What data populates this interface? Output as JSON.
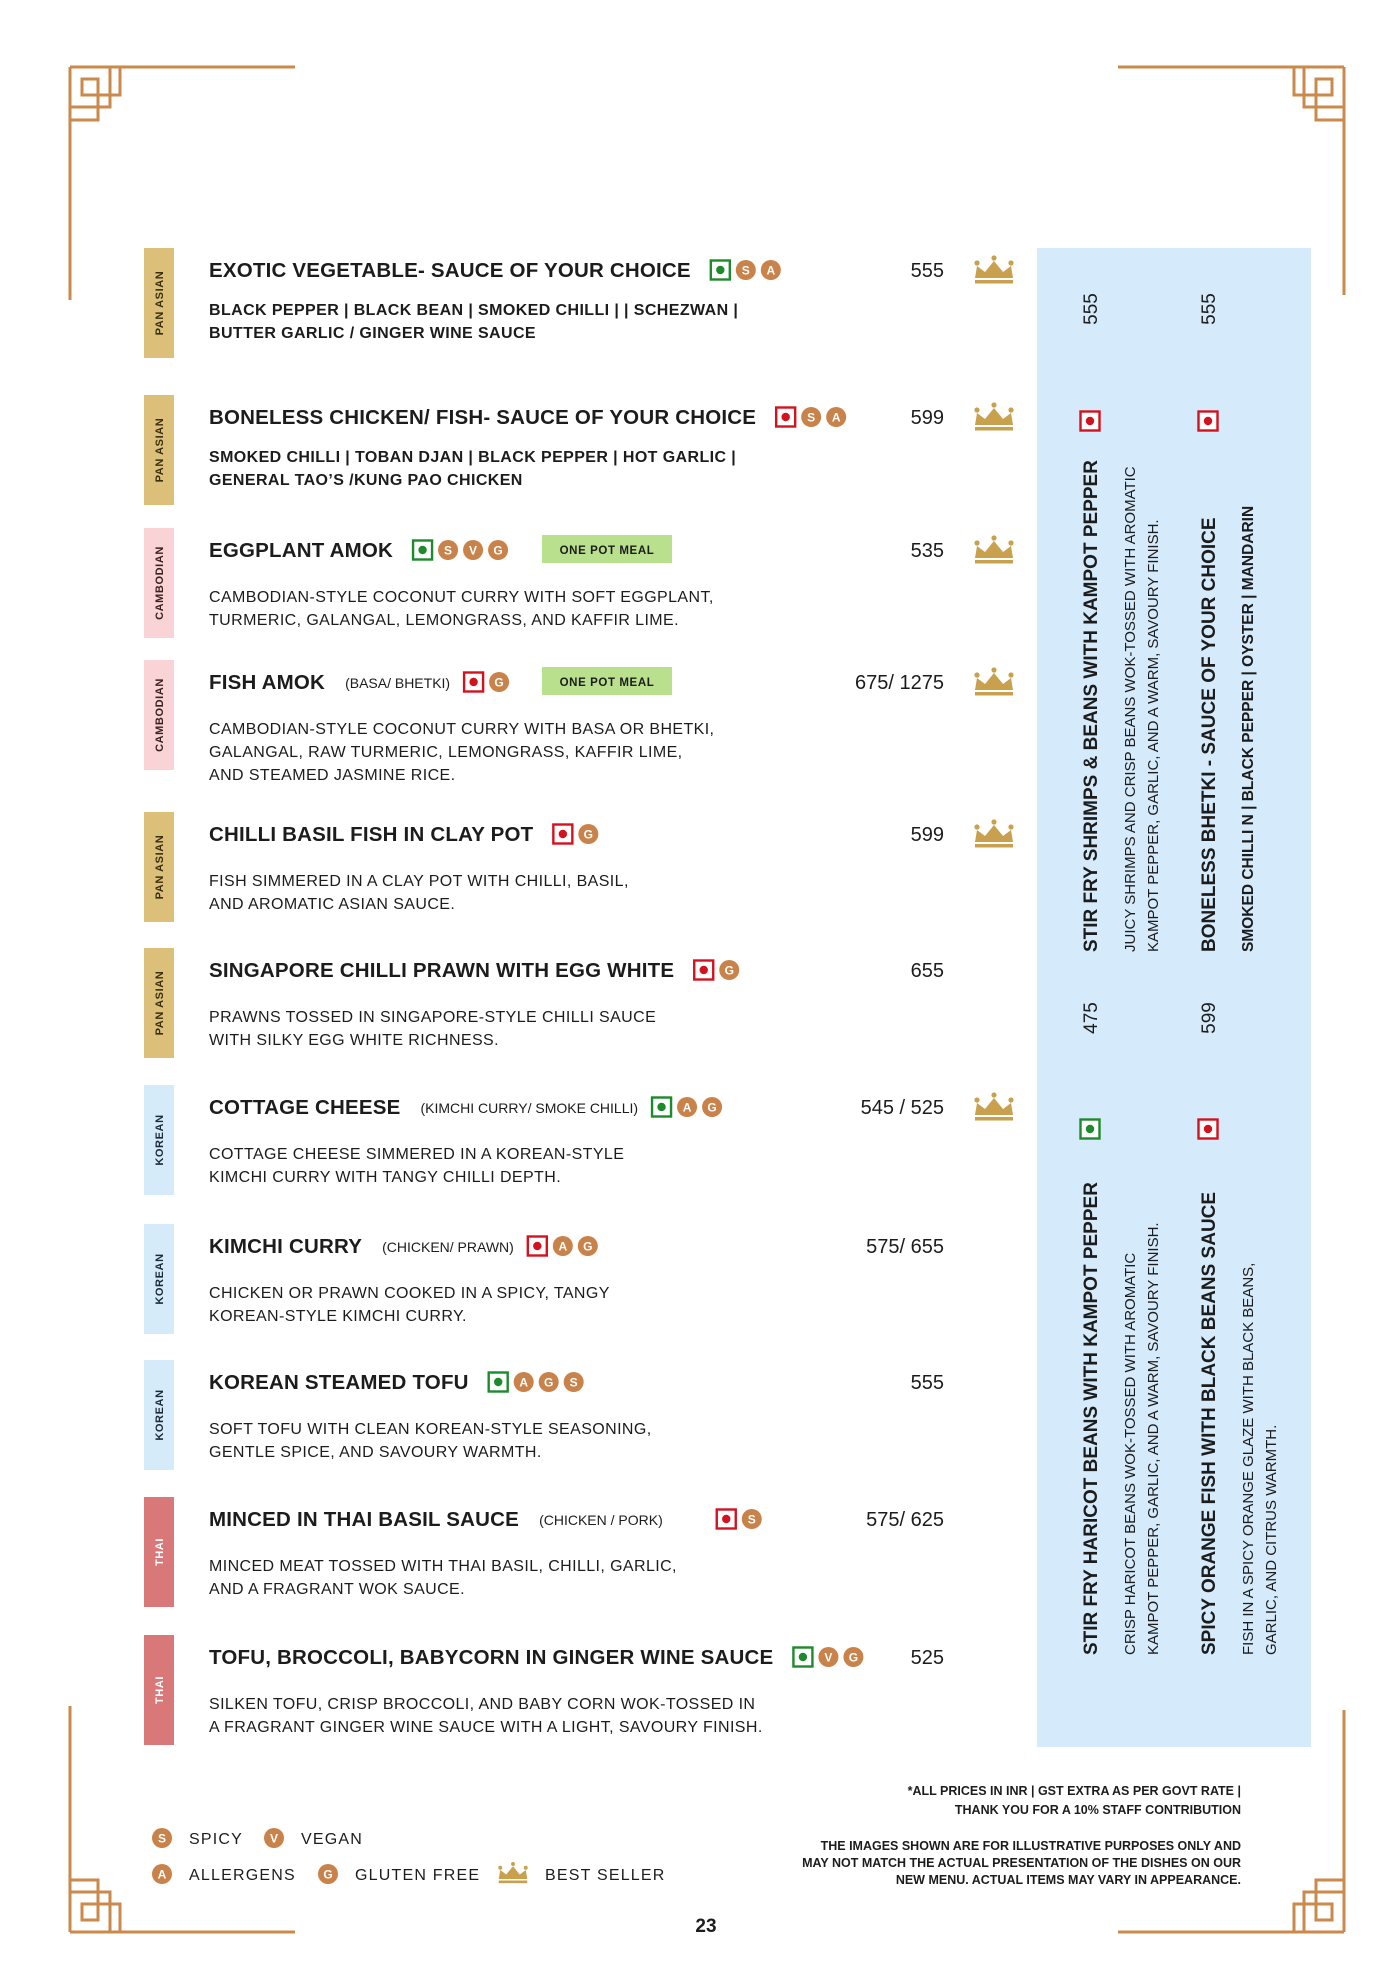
{
  "items": [
    {
      "tag": "PAN ASIAN",
      "tag_color": "#dcc07a",
      "tag_text_color": "#3a2e10",
      "name": "EXOTIC VEGETABLE- SAUCE OF YOUR CHOICE",
      "diet": "veg",
      "icons": [
        "S",
        "A"
      ],
      "price": "555",
      "bestseller": true,
      "desc_bold": true,
      "description": [
        "BLACK PEPPER | BLACK BEAN | SMOKED CHILLI |  | SCHEZWAN |",
        "BUTTER GARLIC / GINGER WINE SAUCE"
      ]
    },
    {
      "tag": "PAN ASIAN",
      "tag_color": "#dcc07a",
      "tag_text_color": "#3a2e10",
      "name": "BONELESS CHICKEN/ FISH- SAUCE OF YOUR CHOICE",
      "diet": "non-veg",
      "icons": [
        "S",
        "A"
      ],
      "price": "599",
      "bestseller": true,
      "desc_bold": true,
      "description": [
        "SMOKED CHILLI | TOBAN DJAN | BLACK PEPPER | HOT GARLIC |",
        "GENERAL TAO’S /KUNG PAO CHICKEN"
      ]
    },
    {
      "tag": "CAMBODIAN",
      "tag_color": "#f9d3d6",
      "tag_text_color": "#3a2020",
      "name": "EGGPLANT AMOK",
      "diet": "veg",
      "icons": [
        "S",
        "V",
        "G"
      ],
      "one_pot": "ONE POT MEAL",
      "price": "535",
      "bestseller": true,
      "desc_bold": false,
      "description": [
        "CAMBODIAN-STYLE COCONUT CURRY WITH SOFT EGGPLANT,",
        "TURMERIC, GALANGAL, LEMONGRASS, AND KAFFIR LIME."
      ]
    },
    {
      "tag": "CAMBODIAN",
      "tag_color": "#f9d3d6",
      "tag_text_color": "#3a2020",
      "name": "FISH AMOK",
      "variant": "(BASA/ BHETKI)",
      "diet": "non-veg",
      "icons": [
        "G"
      ],
      "one_pot": "ONE POT MEAL",
      "price": "675/ 1275",
      "bestseller": true,
      "desc_bold": false,
      "description": [
        "CAMBODIAN-STYLE COCONUT CURRY WITH BASA OR BHETKI,",
        "GALANGAL, RAW TURMERIC, LEMONGRASS, KAFFIR LIME,",
        "AND STEAMED JASMINE RICE."
      ]
    },
    {
      "tag": "PAN ASIAN",
      "tag_color": "#dcc07a",
      "tag_text_color": "#3a2e10",
      "name": "CHILLI BASIL FISH IN CLAY POT",
      "diet": "non-veg",
      "icons": [
        "G"
      ],
      "price": "599",
      "bestseller": true,
      "desc_bold": false,
      "description": [
        "FISH SIMMERED IN A CLAY POT WITH CHILLI, BASIL,",
        "AND AROMATIC ASIAN SAUCE."
      ]
    },
    {
      "tag": "PAN ASIAN",
      "tag_color": "#dcc07a",
      "tag_text_color": "#3a2e10",
      "name": "SINGAPORE CHILLI PRAWN WITH EGG WHITE",
      "diet": "non-veg",
      "icons": [
        "G"
      ],
      "price": "655",
      "bestseller": false,
      "desc_bold": false,
      "description": [
        "PRAWNS TOSSED IN SINGAPORE-STYLE CHILLI SAUCE",
        "WITH SILKY EGG WHITE RICHNESS."
      ]
    },
    {
      "tag": "KOREAN",
      "tag_color": "#d6ebf9",
      "tag_text_color": "#1c2a3a",
      "name": "COTTAGE CHEESE",
      "variant": "(KIMCHI CURRY/ SMOKE CHILLI)",
      "diet": "veg",
      "icons": [
        "A",
        "G"
      ],
      "price": "545 / 525",
      "bestseller": true,
      "desc_bold": false,
      "description": [
        "COTTAGE CHEESE SIMMERED IN A KOREAN-STYLE",
        "KIMCHI CURRY WITH TANGY CHILLI DEPTH."
      ]
    },
    {
      "tag": "KOREAN",
      "tag_color": "#d6ebf9",
      "tag_text_color": "#1c2a3a",
      "name": "KIMCHI CURRY",
      "variant": "(CHICKEN/ PRAWN)",
      "diet": "non-veg",
      "icons": [
        "A",
        "G"
      ],
      "price": "575/ 655",
      "bestseller": false,
      "desc_bold": false,
      "description": [
        "CHICKEN OR PRAWN COOKED IN A SPICY, TANGY",
        "KOREAN-STYLE KIMCHI CURRY."
      ]
    },
    {
      "tag": "KOREAN",
      "tag_color": "#d6ebf9",
      "tag_text_color": "#1c2a3a",
      "name": "KOREAN STEAMED TOFU",
      "diet": "veg",
      "icons": [
        "A",
        "G",
        "S"
      ],
      "price": "555",
      "bestseller": false,
      "desc_bold": false,
      "description": [
        "SOFT TOFU WITH CLEAN KOREAN-STYLE SEASONING,",
        "GENTLE SPICE, AND SAVOURY WARMTH."
      ]
    },
    {
      "tag": "THAI",
      "tag_color": "#d97878",
      "tag_text_color": "#ffffff",
      "name": "MINCED IN THAI BASIL SAUCE",
      "variant": "(CHICKEN / PORK)",
      "diet": "non-veg",
      "icons": [
        "S"
      ],
      "price": "575/ 625",
      "bestseller": false,
      "desc_bold": false,
      "description": [
        "MINCED MEAT TOSSED WITH THAI BASIL, CHILLI, GARLIC,",
        "AND A FRAGRANT WOK SAUCE."
      ]
    },
    {
      "tag": "THAI",
      "tag_color": "#d97878",
      "tag_text_color": "#ffffff",
      "name": "TOFU, BROCCOLI, BABYCORN IN GINGER WINE SAUCE",
      "diet": "veg",
      "icons": [
        "V",
        "G"
      ],
      "price": "525",
      "bestseller": false,
      "desc_bold": false,
      "description": [
        "SILKEN TOFU, CRISP BROCCOLI, AND BABY CORN WOK-TOSSED IN",
        "A FRAGRANT GINGER WINE SAUCE WITH A LIGHT, SAVOURY FINISH."
      ]
    }
  ],
  "side_panel": {
    "color": "#d5eafa",
    "items": [
      {
        "name": "STIR FRY SHRIMPS & BEANS WITH KAMPOT PEPPER",
        "diet": "non-veg",
        "price": "555",
        "desc_bold": false,
        "description": [
          "JUICY SHRIMPS AND CRISP BEANS WOK-TOSSED WITH AROMATIC",
          "KAMPOT PEPPER, GARLIC, AND A WARM, SAVOURY FINISH."
        ]
      },
      {
        "name": "BONELESS BHETKI -  SAUCE OF YOUR CHOICE",
        "diet": "non-veg",
        "price": "555",
        "desc_bold": true,
        "description": [
          "SMOKED CHILLI N | BLACK PEPPER | OYSTER | MANDARIN"
        ]
      },
      {
        "name": "STIR FRY HARICOT BEANS WITH KAMPOT PEPPER",
        "diet": "veg",
        "price": "475",
        "desc_bold": false,
        "description": [
          "CRISP HARICOT BEANS WOK-TOSSED WITH AROMATIC",
          "KAMPOT PEPPER, GARLIC, AND A WARM, SAVOURY FINISH."
        ]
      },
      {
        "name": "SPICY ORANGE FISH WITH BLACK BEANS SAUCE",
        "diet": "non-veg",
        "price": "599",
        "desc_bold": false,
        "description": [
          "FISH IN A SPICY ORANGE GLAZE WITH BLACK BEANS,",
          "GARLIC, AND CITRUS WARMTH."
        ]
      }
    ]
  },
  "legend": [
    {
      "icon": "S",
      "label": "SPICY"
    },
    {
      "icon": "V",
      "label": "VEGAN"
    },
    {
      "icon": "A",
      "label": "ALLERGENS"
    },
    {
      "icon": "G",
      "label": "GLUTEN FREE"
    },
    {
      "label": "BEST SELLER"
    }
  ],
  "notes": [
    "*ALL PRICES IN INR | GST EXTRA AS PER GOVT RATE |",
    "THANK YOU FOR A 10% STAFF CONTRIBUTION",
    "THE IMAGES SHOWN ARE FOR ILLUSTRATIVE PURPOSES ONLY AND",
    "MAY NOT MATCH THE ACTUAL PRESENTATION OF THE DISHES ON OUR",
    "NEW MENU. ACTUAL ITEMS MAY VARY IN APPEARANCE."
  ],
  "page_number": "23"
}
